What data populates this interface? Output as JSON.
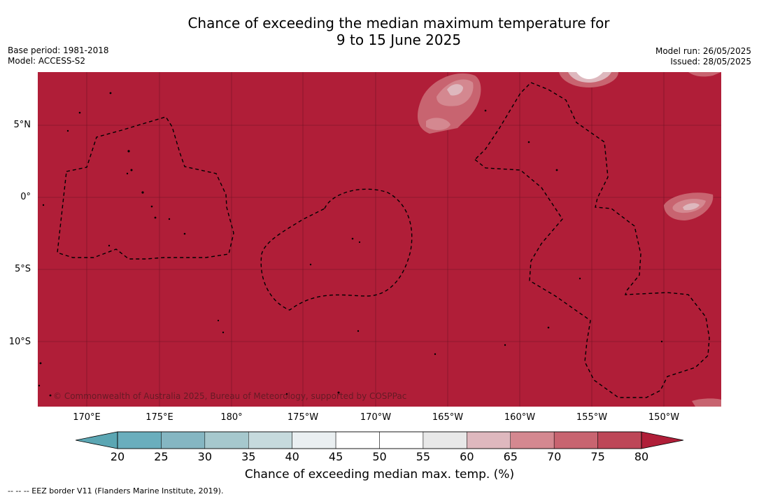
{
  "title_line1": "Chance of exceeding the median maximum temperature for",
  "title_line2": "9 to 15 June 2025",
  "base_period": "Base period: 1981-2018",
  "model": "Model: ACCESS-S2",
  "model_run": "Model run: 26/05/2025",
  "issued": "Issued: 28/05/2025",
  "copyright": "© Commonwealth of Australia 2025, Bureau of Meteorology, supported by COSPPac",
  "lat_labels": [
    "5°N",
    "0°",
    "5°S",
    "10°S"
  ],
  "lon_labels": [
    "170°E",
    "175°E",
    "180°",
    "175°W",
    "170°W",
    "165°W",
    "160°W",
    "155°W",
    "150°W"
  ],
  "colorbar": {
    "title": "Chance of exceeding median max. temp. (%)",
    "ticks": [
      "20",
      "25",
      "30",
      "35",
      "40",
      "45",
      "50",
      "55",
      "60",
      "65",
      "70",
      "75",
      "80"
    ],
    "colors": [
      "#6aaebd",
      "#85b6c2",
      "#a6c8cd",
      "#c6dadd",
      "#eaeff1",
      "#ffffff",
      "#ffffff",
      "#e8e8e8",
      "#deb8be",
      "#d48890",
      "#c86470",
      "#bd4657"
    ],
    "under_color": "#5ba6b3",
    "over_color": "#b01e38"
  },
  "map_colors": {
    "background": "#b01e38",
    "land": "#000000"
  },
  "eez_legend": "--  --  -- EEZ border V11 (Flanders Marine Institute, 2019)."
}
